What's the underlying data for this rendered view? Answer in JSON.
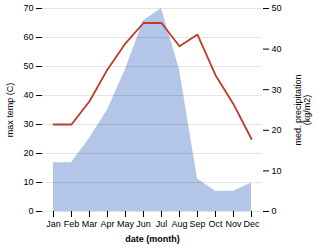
{
  "chart_data": {
    "type": "line",
    "xlabel": "date (month)",
    "ylabel": "max temp (C)",
    "y2label": "med. precipitation\n(kg/m2)",
    "categories": [
      "Jan",
      "Feb",
      "Mar",
      "Apr",
      "May",
      "Jun",
      "Jul",
      "Aug",
      "Sep",
      "Oct",
      "Nov",
      "Dec"
    ],
    "series": [
      {
        "type": "area",
        "axis": "y2",
        "color": "#b3c6e8",
        "values": [
          12,
          12,
          18,
          25,
          35,
          47,
          50,
          35,
          8,
          5,
          5,
          7
        ]
      },
      {
        "type": "line",
        "color": "#c0392b",
        "values": [
          30,
          30,
          38,
          49,
          58,
          65,
          65,
          57,
          61,
          47,
          37,
          25
        ]
      }
    ],
    "ylim": [
      0,
      70
    ],
    "yticks": [
      0,
      10,
      20,
      30,
      40,
      50,
      60,
      70
    ],
    "y2lim": [
      0,
      50
    ],
    "y2ticks": [
      0,
      10,
      20,
      30,
      40,
      50
    ],
    "grid": true
  }
}
